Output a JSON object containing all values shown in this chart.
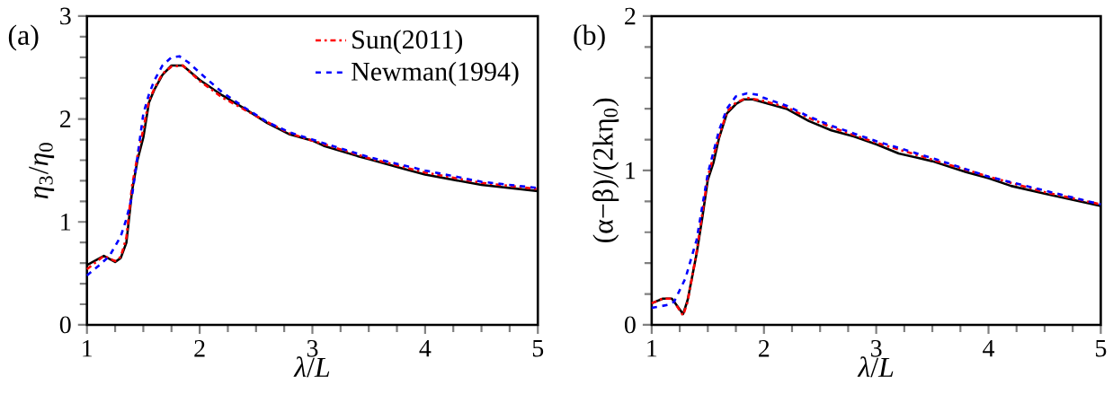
{
  "chart_data": [
    {
      "type": "line",
      "xlabel": "*λ*/*L*",
      "ylabel": "*η*$_{3}$/*η*$_{0}$",
      "annotations": [
        "(a)"
      ],
      "xlim": [
        1,
        5
      ],
      "ylim": [
        0,
        3
      ],
      "xticks": [
        1,
        2,
        3,
        4,
        5
      ],
      "yticks": [
        0,
        1,
        2,
        3
      ],
      "legend": "top right",
      "series": [
        {
          "color": "#000000",
          "line_style": "solid",
          "x": [
            1,
            1.15,
            1.25,
            1.3,
            1.35,
            1.4,
            1.45,
            1.5,
            1.55,
            1.6,
            1.67,
            1.75,
            1.85,
            2.0,
            2.2,
            2.4,
            2.6,
            2.8,
            3.0,
            3.1,
            3.4,
            3.5,
            3.8,
            4.0,
            4.5,
            5
          ],
          "values": [
            0.58,
            0.67,
            0.61,
            0.65,
            0.8,
            1.3,
            1.61,
            1.82,
            2.16,
            2.29,
            2.43,
            2.52,
            2.52,
            2.38,
            2.23,
            2.1,
            1.96,
            1.85,
            1.79,
            1.74,
            1.64,
            1.61,
            1.52,
            1.46,
            1.36,
            1.3
          ]
        },
        {
          "name": "Sun(2011)",
          "color": "#ff0000",
          "line_style": "dashdot",
          "x": [
            1,
            1.15,
            1.25,
            1.3,
            1.35,
            1.4,
            1.45,
            1.5,
            1.55,
            1.6,
            1.67,
            1.75,
            1.85,
            2.0,
            2.2,
            2.4,
            2.6,
            2.8,
            3.0,
            3.5,
            4.0,
            4.5,
            5
          ],
          "values": [
            0.54,
            0.67,
            0.62,
            0.66,
            0.85,
            1.35,
            1.65,
            1.9,
            2.18,
            2.3,
            2.44,
            2.51,
            2.52,
            2.37,
            2.21,
            2.09,
            1.97,
            1.86,
            1.79,
            1.62,
            1.48,
            1.38,
            1.32
          ]
        },
        {
          "name": "Newman(1994)",
          "color": "#0000ff",
          "line_style": "dashed",
          "x": [
            1,
            1.1,
            1.2,
            1.3,
            1.35,
            1.4,
            1.45,
            1.5,
            1.55,
            1.6,
            1.67,
            1.75,
            1.82,
            1.9,
            2.0,
            2.2,
            2.4,
            2.6,
            2.8,
            3.0,
            3.5,
            4.0,
            4.5,
            5
          ],
          "values": [
            0.48,
            0.57,
            0.67,
            0.86,
            1.03,
            1.25,
            1.65,
            2.05,
            2.24,
            2.38,
            2.52,
            2.6,
            2.61,
            2.55,
            2.45,
            2.26,
            2.11,
            1.97,
            1.87,
            1.8,
            1.63,
            1.5,
            1.39,
            1.33
          ]
        }
      ]
    },
    {
      "type": "line",
      "xlabel": "*λ*/*L*",
      "ylabel": "(α−β)/(2kη$_{0}$)",
      "annotations": [
        "(b)"
      ],
      "xlim": [
        1,
        5
      ],
      "ylim": [
        0,
        2
      ],
      "xticks": [
        1,
        2,
        3,
        4,
        5
      ],
      "yticks": [
        0,
        1,
        2
      ],
      "series": [
        {
          "color": "#000000",
          "line_style": "solid",
          "x": [
            1,
            1.1,
            1.18,
            1.28,
            1.32,
            1.4,
            1.45,
            1.5,
            1.55,
            1.6,
            1.67,
            1.75,
            1.82,
            1.9,
            2.0,
            2.2,
            2.4,
            2.6,
            2.8,
            3.0,
            3.2,
            3.5,
            3.8,
            4.0,
            4.2,
            4.5,
            5
          ],
          "values": [
            0.14,
            0.17,
            0.17,
            0.07,
            0.16,
            0.46,
            0.69,
            0.94,
            1.05,
            1.21,
            1.37,
            1.43,
            1.46,
            1.46,
            1.44,
            1.4,
            1.32,
            1.26,
            1.22,
            1.17,
            1.11,
            1.06,
            0.99,
            0.95,
            0.9,
            0.85,
            0.77
          ]
        },
        {
          "color": "#ff0000",
          "line_style": "dashdot",
          "x": [
            1,
            1.1,
            1.18,
            1.28,
            1.32,
            1.4,
            1.5,
            1.6,
            1.67,
            1.75,
            1.85,
            2.0,
            2.2,
            2.4,
            2.6,
            2.8,
            3.0,
            3.5,
            4.0,
            4.5,
            5
          ],
          "values": [
            0.14,
            0.17,
            0.17,
            0.06,
            0.15,
            0.47,
            0.96,
            1.22,
            1.38,
            1.44,
            1.47,
            1.45,
            1.41,
            1.34,
            1.28,
            1.23,
            1.18,
            1.07,
            0.96,
            0.86,
            0.78
          ]
        },
        {
          "color": "#0000ff",
          "line_style": "dashed",
          "x": [
            1,
            1.15,
            1.2,
            1.3,
            1.4,
            1.5,
            1.6,
            1.67,
            1.75,
            1.85,
            1.95,
            2.0,
            2.2,
            2.4,
            2.6,
            2.8,
            3.0,
            3.5,
            4.0,
            4.5,
            5
          ],
          "values": [
            0.11,
            0.13,
            0.15,
            0.3,
            0.55,
            0.98,
            1.26,
            1.4,
            1.48,
            1.5,
            1.49,
            1.47,
            1.42,
            1.35,
            1.29,
            1.24,
            1.19,
            1.08,
            0.96,
            0.87,
            0.78
          ]
        }
      ]
    }
  ]
}
